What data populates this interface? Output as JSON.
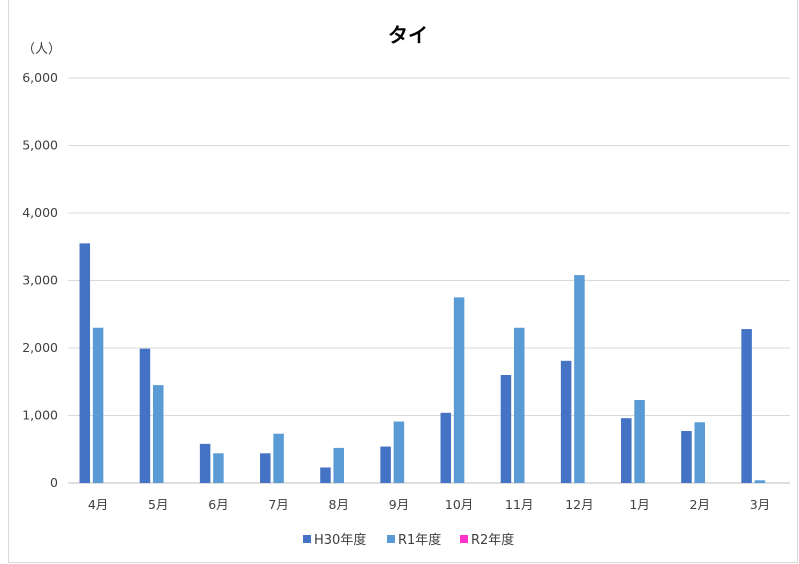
{
  "chart_data": {
    "type": "bar",
    "title": "タイ",
    "unit_label": "（人）",
    "categories": [
      "4月",
      "5月",
      "6月",
      "7月",
      "8月",
      "9月",
      "10月",
      "11月",
      "12月",
      "1月",
      "2月",
      "3月"
    ],
    "series": [
      {
        "name": "H30年度",
        "color": "#4472c4",
        "values": [
          3550,
          1990,
          580,
          440,
          230,
          540,
          1040,
          1600,
          1810,
          960,
          770,
          2280
        ]
      },
      {
        "name": "R1年度",
        "color": "#5b9bd5",
        "values": [
          2300,
          1450,
          440,
          730,
          520,
          910,
          2750,
          2300,
          3080,
          1230,
          900,
          40
        ]
      },
      {
        "name": "R2年度",
        "color": "#ff33cc",
        "values": [
          0,
          0,
          0,
          0,
          0,
          0,
          0,
          0,
          0,
          0,
          0,
          0
        ]
      }
    ],
    "ylim": [
      0,
      6000
    ],
    "yticks": [
      "0",
      "1,000",
      "2,000",
      "3,000",
      "4,000",
      "5,000",
      "6,000"
    ],
    "grid": true,
    "legend": "bottom"
  }
}
